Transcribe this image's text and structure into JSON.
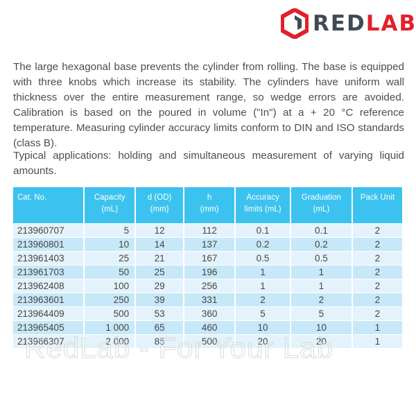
{
  "logo": {
    "part1": "RED",
    "part2": "LAB"
  },
  "paragraphs": [
    "The large hexagonal base prevents the cylinder from rolling. The base is equipped with three knobs which increase its stability. The cylinders have uniform wall thickness over the entire measurement range, so wedge errors are avoided. Calibration is based on the poured in volume (\"In\") at a + 20 °C reference temperature. Measuring cylinder accuracy limits conform to DIN and ISO standards (class B).",
    "Typical applications: holding and simultaneous measurement of varying liquid amounts."
  ],
  "table": {
    "headers": [
      [
        "Cat. No.",
        ""
      ],
      [
        "Capacity",
        "(mL)"
      ],
      [
        "d (OD)",
        "(mm)"
      ],
      [
        "h",
        "(mm)"
      ],
      [
        "Accuracy",
        "limits (mL)"
      ],
      [
        "Graduation",
        "(mL)"
      ],
      [
        "Pack Unit",
        ""
      ]
    ],
    "rows": [
      [
        "213960707",
        "5",
        "12",
        "112",
        "0.1",
        "0.1",
        "2"
      ],
      [
        "213960801",
        "10",
        "14",
        "137",
        "0.2",
        "0.2",
        "2"
      ],
      [
        "213961403",
        "25",
        "21",
        "167",
        "0.5",
        "0.5",
        "2"
      ],
      [
        "213961703",
        "50",
        "25",
        "196",
        "1",
        "1",
        "2"
      ],
      [
        "213962408",
        "100",
        "29",
        "256",
        "1",
        "1",
        "2"
      ],
      [
        "213963601",
        "250",
        "39",
        "331",
        "2",
        "2",
        "2"
      ],
      [
        "213964409",
        "500",
        "53",
        "360",
        "5",
        "5",
        "2"
      ],
      [
        "213965405",
        "1 000",
        "65",
        "460",
        "10",
        "10",
        "1"
      ],
      [
        "213966307",
        "2 000",
        "85",
        "500",
        "20",
        "20",
        "1"
      ]
    ]
  },
  "watermark": "RedLab - For Your Lab"
}
